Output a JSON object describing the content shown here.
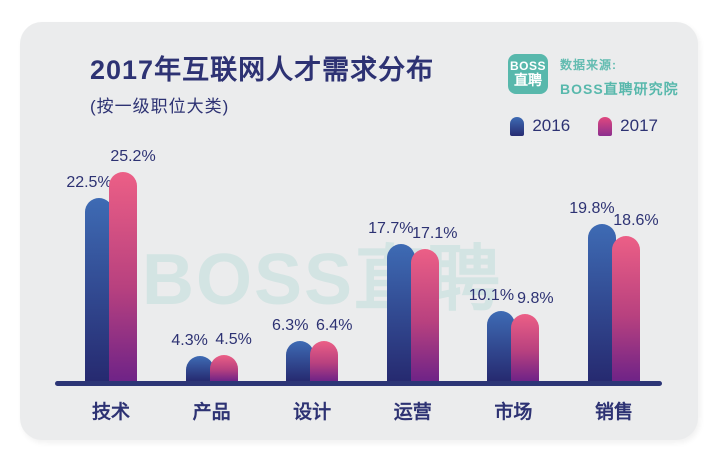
{
  "header": {
    "title": "2017年互联网人才需求分布",
    "subtitle": "(按一级职位大类)",
    "logo": {
      "line1": "BOSS",
      "line2": "直聘"
    },
    "source_label": "数据来源:",
    "source_name": "BOSS直聘研究院"
  },
  "watermark": "BOSS直聘",
  "legend": {
    "items": [
      {
        "label": "2016",
        "color_top": "#3e6bb4",
        "color_bottom": "#272c72"
      },
      {
        "label": "2017",
        "color_top": "#e0487e",
        "color_bottom": "#8c2f8e"
      }
    ],
    "position": "top-right"
  },
  "chart_data": {
    "type": "bar",
    "title": "2017年互联网人才需求分布",
    "subtitle": "(按一级职位大类)",
    "unit": "%",
    "categories": [
      "技术",
      "产品",
      "设计",
      "运营",
      "市场",
      "销售"
    ],
    "series": [
      {
        "name": "2016",
        "values": [
          22.5,
          4.3,
          6.3,
          17.7,
          10.1,
          19.8
        ]
      },
      {
        "name": "2017",
        "values": [
          25.2,
          4.5,
          6.4,
          17.1,
          9.8,
          18.6
        ]
      }
    ],
    "value_labels_shown": true,
    "grid": false,
    "legend_position": "top-right",
    "height_scale": {
      "a": 4.36,
      "b": 1.2
    },
    "colors": {
      "bar_2016_top": "#3e6bb4",
      "bar_2016_bottom": "#262a70",
      "bar_2017_top": "#ec5f86",
      "bar_2017_bottom": "#6f2387",
      "axis": "#2c3576",
      "text": "#2d3273",
      "brand_teal": "#58b8ac",
      "card_bg": "#ebeced",
      "page_bg": "#ffffff"
    }
  }
}
